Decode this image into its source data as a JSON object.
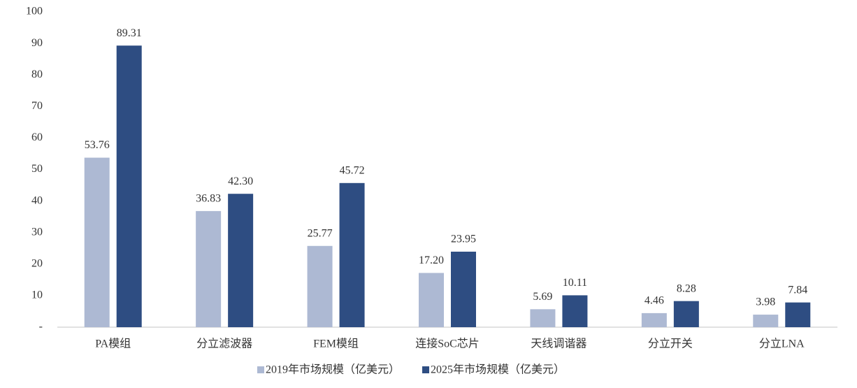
{
  "chart_data": {
    "type": "bar",
    "categories": [
      "PA模组",
      "分立滤波器",
      "FEM模组",
      "连接SoC芯片",
      "天线调谐器",
      "分立开关",
      "分立LNA"
    ],
    "series": [
      {
        "name": "2019年市场规模（亿美元）",
        "color": "#adb9d3",
        "values": [
          53.76,
          36.83,
          25.77,
          17.2,
          5.69,
          4.46,
          3.98
        ],
        "value_labels": [
          "53.76",
          "36.83",
          "25.77",
          "17.20",
          "5.69",
          "4.46",
          "3.98"
        ]
      },
      {
        "name": "2025年市场规模（亿美元）",
        "color": "#2e4d82",
        "values": [
          89.31,
          42.3,
          45.72,
          23.95,
          10.11,
          8.28,
          7.84
        ],
        "value_labels": [
          "89.31",
          "42.30",
          "45.72",
          "23.95",
          "10.11",
          "8.28",
          "7.84"
        ]
      }
    ],
    "ylim": [
      0,
      100
    ],
    "yticks": [
      {
        "value": 0,
        "label": "-"
      },
      10,
      20,
      30,
      40,
      50,
      60,
      70,
      80,
      90,
      100
    ],
    "grid": false,
    "legend": "bottom"
  }
}
